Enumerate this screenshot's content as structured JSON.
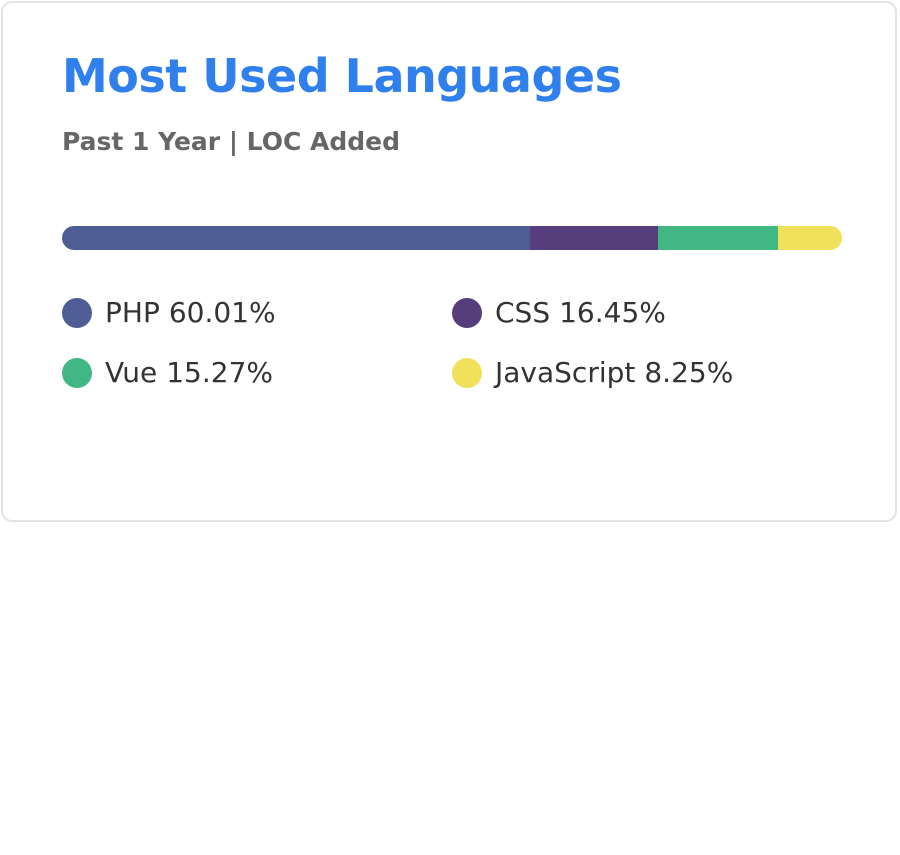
{
  "chart_data": {
    "type": "bar",
    "variant": "stacked-percentage",
    "title": "Most Used Languages",
    "subtitle": "Past 1 Year | LOC Added",
    "unit": "%",
    "categories": [
      "PHP",
      "CSS",
      "Vue",
      "JavaScript"
    ],
    "values": [
      60.01,
      16.45,
      15.27,
      8.25
    ],
    "labels": [
      "60.01%",
      "16.45%",
      "15.27%",
      "8.25%"
    ],
    "colors": [
      "#4f5d95",
      "#563d7c",
      "#41b883",
      "#f1e05a"
    ],
    "legend_placement": "bottom"
  }
}
